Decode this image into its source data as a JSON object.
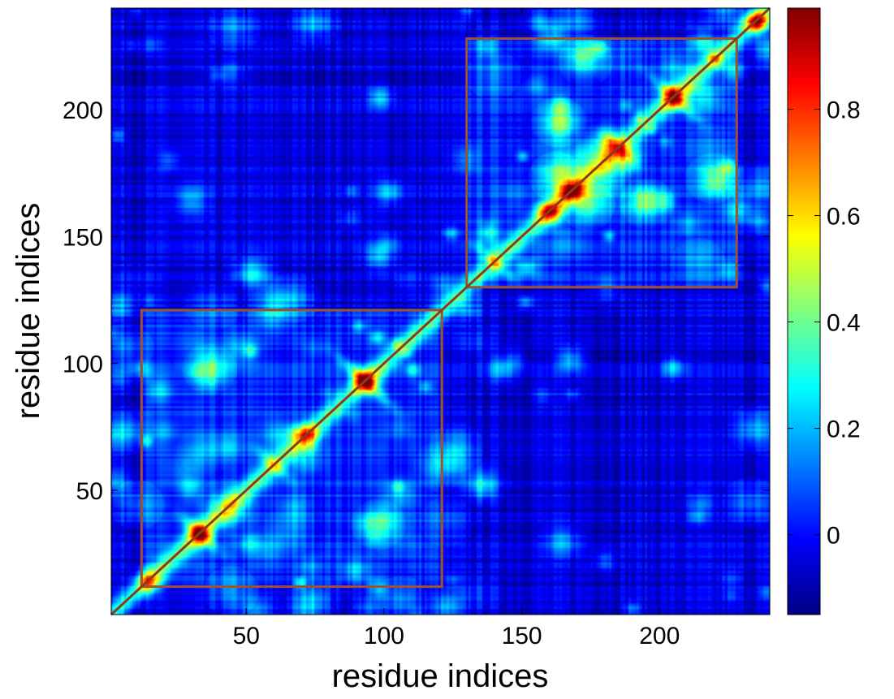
{
  "chart_data": {
    "type": "heatmap",
    "title": "",
    "xlabel": "residue indices",
    "ylabel": "residue indices",
    "xlim": [
      1,
      240
    ],
    "ylim": [
      1,
      240
    ],
    "x_ticks": [
      50,
      100,
      150,
      200
    ],
    "y_ticks": [
      50,
      100,
      150,
      200
    ],
    "diagonal_value": 0.98,
    "background_value": -0.05,
    "domains": [
      {
        "name_hidden": true,
        "range": [
          12,
          121
        ],
        "box_color": "#a0522d"
      },
      {
        "name_hidden": true,
        "range": [
          130,
          228
        ],
        "box_color": "#a0522d"
      }
    ],
    "hotspots": [
      {
        "x": 93,
        "y": 93,
        "value": 0.55
      },
      {
        "x": 72,
        "y": 72,
        "value": 0.5
      },
      {
        "x": 33,
        "y": 33,
        "value": 0.52
      },
      {
        "x": 160,
        "y": 160,
        "value": 0.62
      },
      {
        "x": 168,
        "y": 168,
        "value": 0.55
      },
      {
        "x": 205,
        "y": 205,
        "value": 0.48
      },
      {
        "x": 235,
        "y": 235,
        "value": 0.75
      },
      {
        "x": 14,
        "y": 14,
        "value": 0.45
      }
    ],
    "cross_contacts": [
      {
        "x": 93,
        "y": 93,
        "half_len": 22,
        "value": 0.35
      },
      {
        "x": 33,
        "y": 33,
        "half_len": 15,
        "value": 0.32
      },
      {
        "x": 60,
        "y": 60,
        "half_len": 14,
        "value": 0.28
      },
      {
        "x": 140,
        "y": 140,
        "half_len": 15,
        "value": 0.3
      },
      {
        "x": 205,
        "y": 205,
        "half_len": 20,
        "value": 0.3
      },
      {
        "x": 185,
        "y": 185,
        "half_len": 12,
        "value": 0.25
      }
    ],
    "colorbar": {
      "colormap": "jet",
      "range": [
        -0.15,
        0.99
      ],
      "ticks": [
        0,
        0.2,
        0.4,
        0.6,
        0.8
      ],
      "tick_labels": [
        "0",
        "0.2",
        "0.4",
        "0.6",
        "0.8"
      ]
    }
  }
}
